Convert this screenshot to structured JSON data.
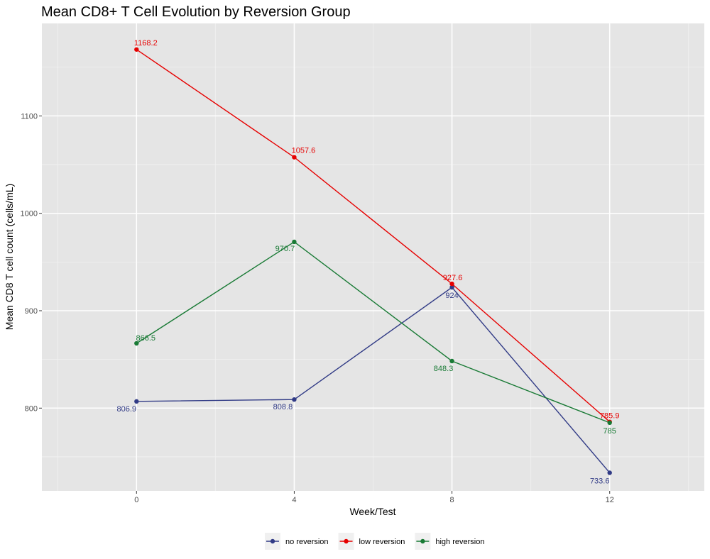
{
  "chart_data": {
    "type": "line",
    "title": "Mean CD8+ T Cell Evolution by Reversion Group",
    "xlabel": "Week/Test",
    "ylabel": "Mean CD8 T cell count (cells/mL)",
    "x": [
      0,
      4,
      8,
      12
    ],
    "xticks": [
      0,
      4,
      8,
      12
    ],
    "yticks": [
      800,
      900,
      1000,
      1100
    ],
    "xlim": [
      -2.4,
      14.4
    ],
    "ylim": [
      715,
      1195
    ],
    "grid": true,
    "legend_position": "bottom",
    "series": [
      {
        "name": "no reversion",
        "color": "#313b86",
        "values": [
          806.9,
          808.8,
          924,
          733.6
        ],
        "labels": [
          "806.9",
          "808.8",
          "924",
          "733.6"
        ]
      },
      {
        "name": "low reversion",
        "color": "#e60000",
        "values": [
          1168.2,
          1057.6,
          927.6,
          785.9
        ],
        "labels": [
          "1168.2",
          "1057.6",
          "927.6",
          "785.9"
        ]
      },
      {
        "name": "high reversion",
        "color": "#197a35",
        "values": [
          866.5,
          970.7,
          848.3,
          785
        ],
        "labels": [
          "866.5",
          "970.7",
          "848.3",
          "785"
        ]
      }
    ]
  }
}
